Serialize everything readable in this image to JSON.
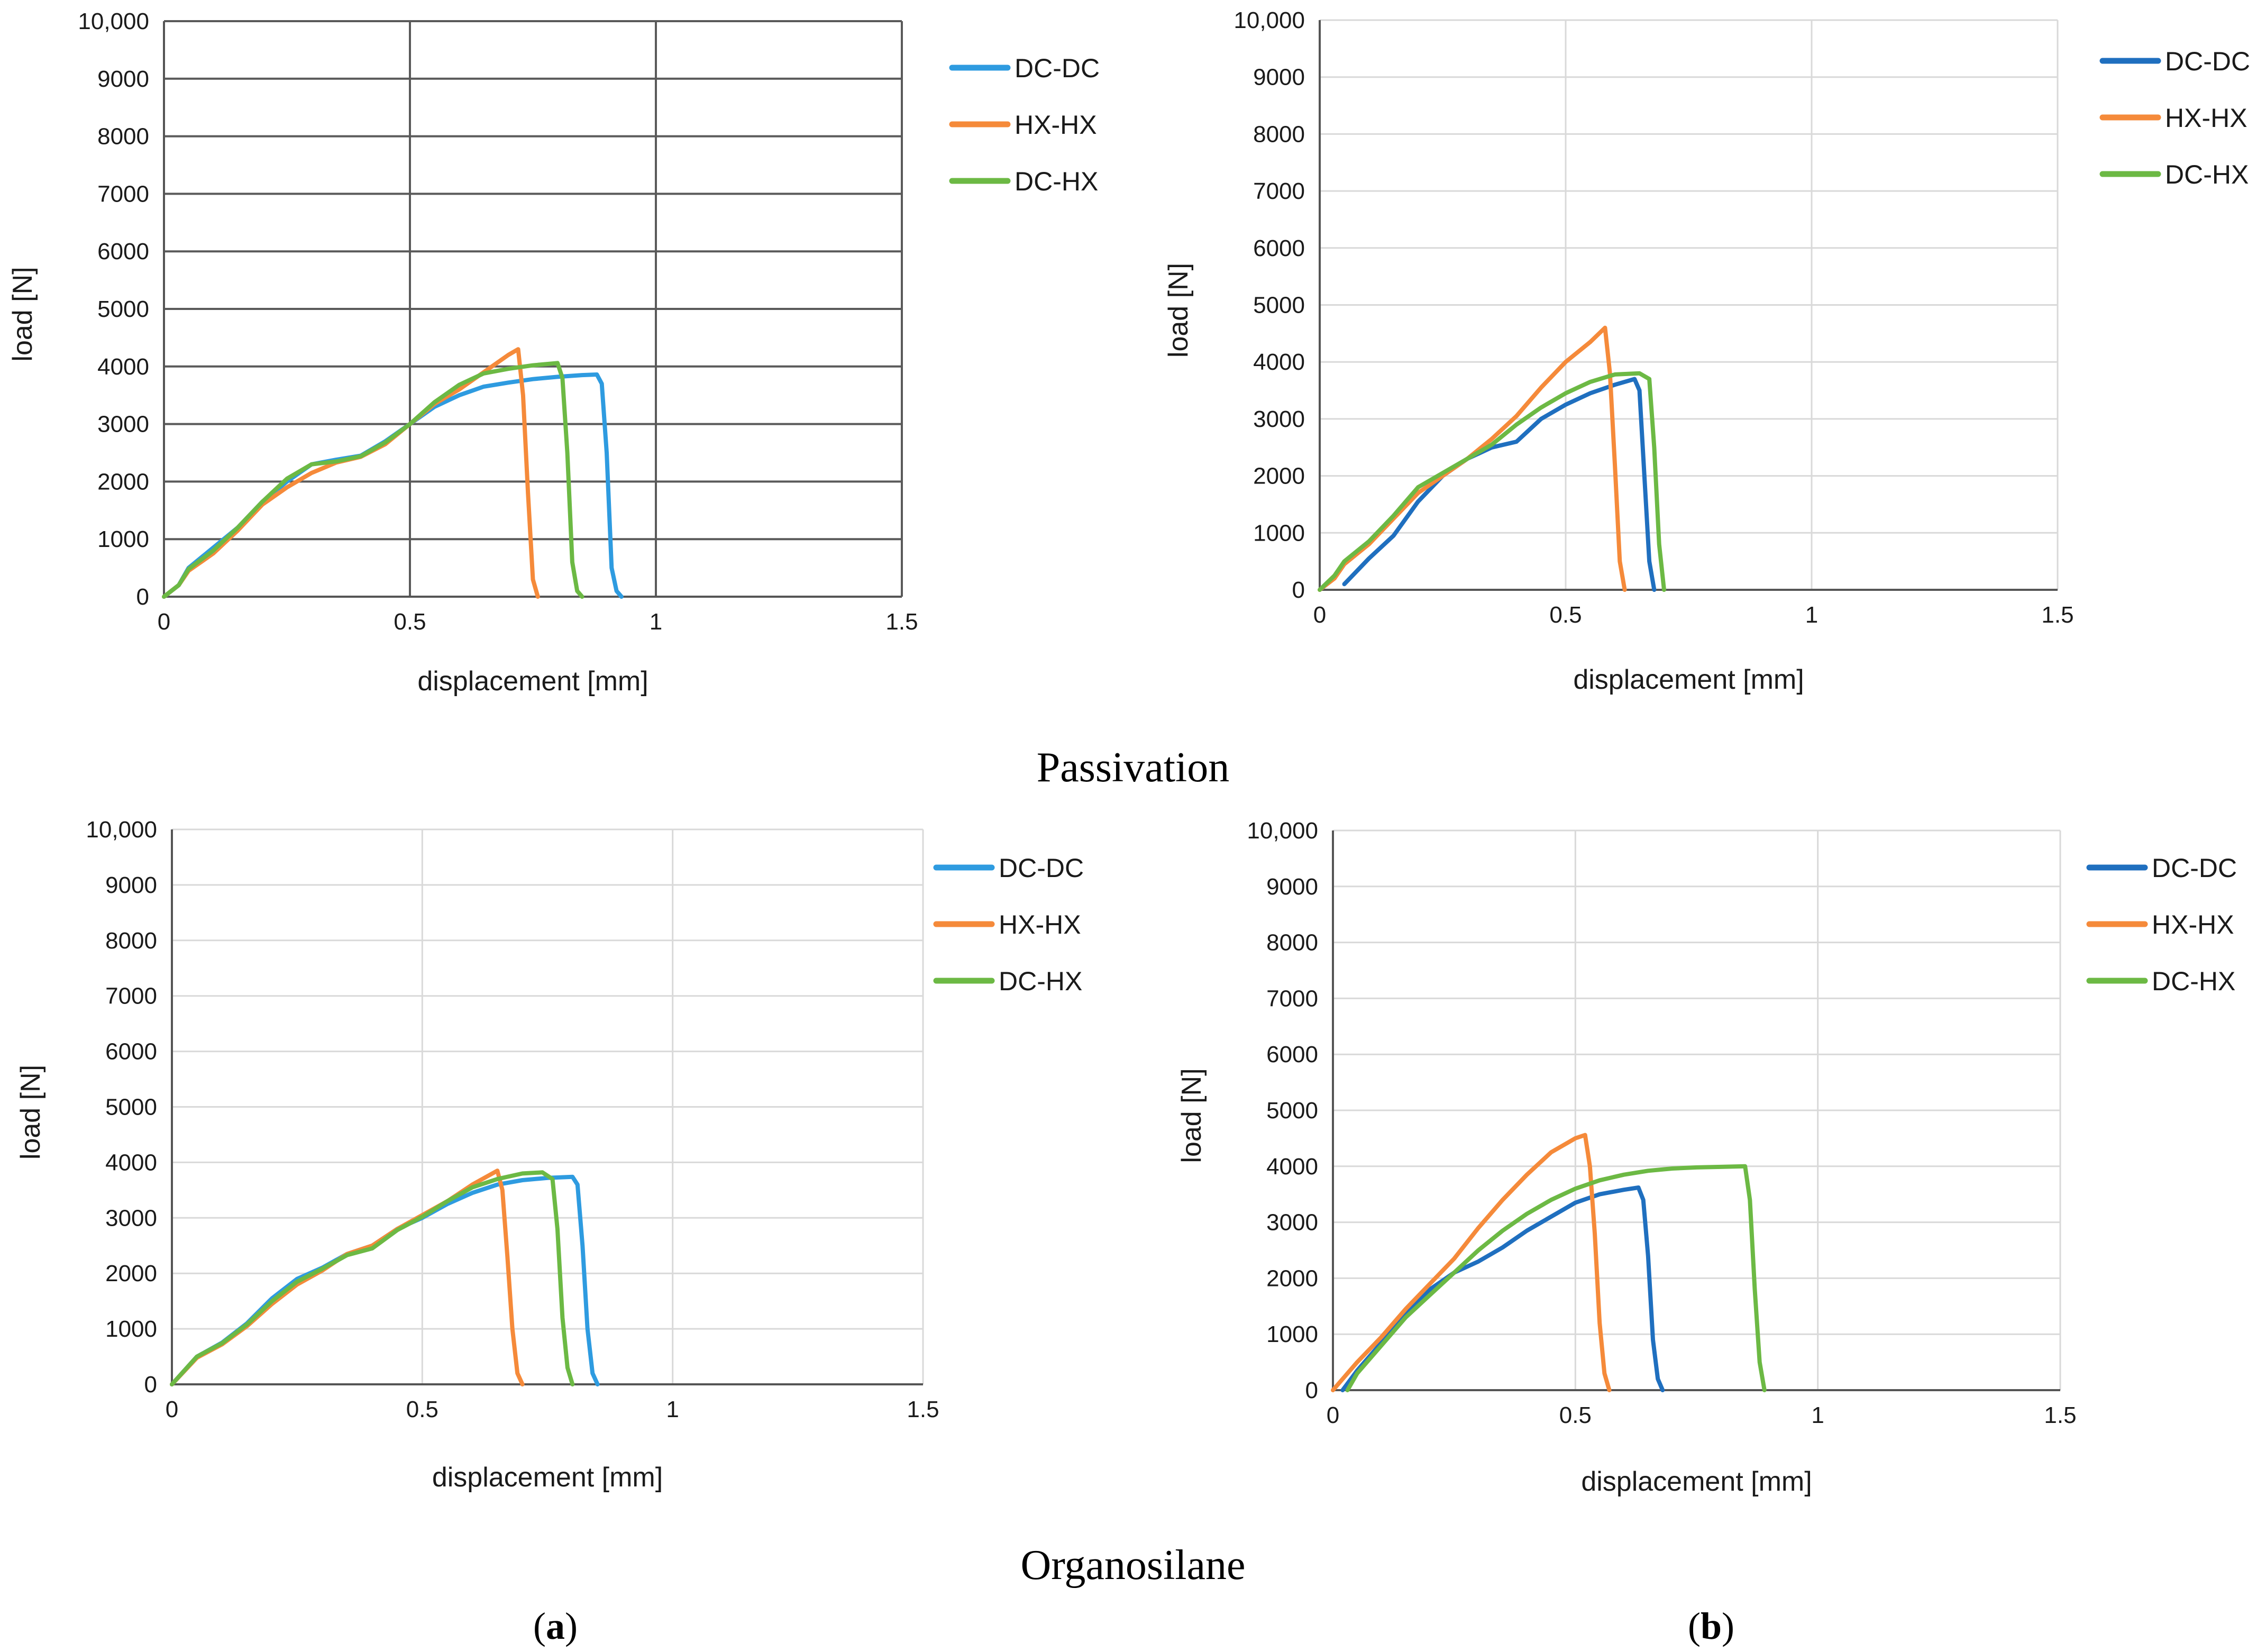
{
  "captions": {
    "row1": "Passivation",
    "row2": "Organosilane"
  },
  "panel_labels": {
    "a": {
      "open": "(",
      "letter": "a",
      "close": ")"
    },
    "b": {
      "open": "(",
      "letter": "b",
      "close": ")"
    }
  },
  "chart_data": [
    {
      "type": "line",
      "panel": "Passivation (a)",
      "xlabel": "displacement [mm]",
      "ylabel": "load [N]",
      "xlim": [
        0,
        1.5
      ],
      "ylim": [
        0,
        10000
      ],
      "xticks": [
        "0",
        "0.5",
        "1",
        "1.5"
      ],
      "yticks": [
        "0",
        "1000",
        "2000",
        "3000",
        "4000",
        "5000",
        "6000",
        "7000",
        "8000",
        "9000",
        "10,000"
      ],
      "grid": "major",
      "grid_color": "#5a5a5a",
      "legend_position": "right",
      "series": [
        {
          "name": "DC-DC",
          "color": "#2e9be0",
          "x": [
            0,
            0.03,
            0.05,
            0.1,
            0.15,
            0.2,
            0.25,
            0.3,
            0.35,
            0.4,
            0.45,
            0.5,
            0.55,
            0.6,
            0.65,
            0.7,
            0.75,
            0.8,
            0.85,
            0.88,
            0.89,
            0.9,
            0.91,
            0.92,
            0.93
          ],
          "y": [
            0,
            200,
            500,
            850,
            1200,
            1650,
            2000,
            2300,
            2380,
            2450,
            2700,
            3000,
            3300,
            3500,
            3650,
            3720,
            3780,
            3820,
            3850,
            3860,
            3700,
            2500,
            500,
            100,
            0
          ]
        },
        {
          "name": "HX-HX",
          "color": "#f58a3a",
          "x": [
            0,
            0.03,
            0.05,
            0.1,
            0.15,
            0.2,
            0.25,
            0.3,
            0.35,
            0.4,
            0.45,
            0.5,
            0.55,
            0.6,
            0.65,
            0.7,
            0.72,
            0.73,
            0.74,
            0.75,
            0.76
          ],
          "y": [
            0,
            200,
            450,
            750,
            1150,
            1600,
            1900,
            2150,
            2330,
            2430,
            2650,
            3000,
            3350,
            3600,
            3900,
            4200,
            4300,
            3500,
            1800,
            300,
            0
          ]
        },
        {
          "name": "DC-HX",
          "color": "#6cb944",
          "x": [
            0,
            0.03,
            0.05,
            0.1,
            0.15,
            0.2,
            0.25,
            0.3,
            0.35,
            0.4,
            0.45,
            0.5,
            0.55,
            0.6,
            0.65,
            0.7,
            0.75,
            0.8,
            0.81,
            0.82,
            0.83,
            0.84,
            0.85
          ],
          "y": [
            0,
            200,
            480,
            800,
            1200,
            1650,
            2050,
            2300,
            2350,
            2440,
            2680,
            3000,
            3380,
            3680,
            3880,
            3960,
            4020,
            4060,
            3800,
            2500,
            600,
            100,
            0
          ]
        }
      ]
    },
    {
      "type": "line",
      "panel": "Passivation (b)",
      "xlabel": "displacement [mm]",
      "ylabel": "load [N]",
      "xlim": [
        0,
        1.5
      ],
      "ylim": [
        0,
        10000
      ],
      "xticks": [
        "0",
        "0.5",
        "1",
        "1.5"
      ],
      "yticks": [
        "0",
        "1000",
        "2000",
        "3000",
        "4000",
        "5000",
        "6000",
        "7000",
        "8000",
        "9000",
        "10,000"
      ],
      "grid": "major",
      "grid_color": "#d9d9d9",
      "legend_position": "right",
      "series": [
        {
          "name": "DC-DC",
          "color": "#1f6fbf",
          "x": [
            0.05,
            0.1,
            0.15,
            0.2,
            0.25,
            0.3,
            0.35,
            0.4,
            0.45,
            0.5,
            0.55,
            0.6,
            0.64,
            0.65,
            0.66,
            0.67,
            0.68
          ],
          "y": [
            100,
            550,
            950,
            1550,
            2000,
            2300,
            2500,
            2600,
            3000,
            3250,
            3450,
            3600,
            3700,
            3500,
            2000,
            500,
            0
          ]
        },
        {
          "name": "HX-HX",
          "color": "#f58a3a",
          "x": [
            0,
            0.03,
            0.05,
            0.1,
            0.15,
            0.2,
            0.25,
            0.3,
            0.35,
            0.4,
            0.45,
            0.5,
            0.55,
            0.58,
            0.59,
            0.6,
            0.61,
            0.62
          ],
          "y": [
            0,
            200,
            450,
            800,
            1250,
            1700,
            2000,
            2300,
            2650,
            3050,
            3550,
            4000,
            4350,
            4600,
            3800,
            2200,
            500,
            0
          ]
        },
        {
          "name": "DC-HX",
          "color": "#6cb944",
          "x": [
            0,
            0.03,
            0.05,
            0.1,
            0.15,
            0.2,
            0.25,
            0.3,
            0.35,
            0.4,
            0.45,
            0.5,
            0.55,
            0.6,
            0.65,
            0.67,
            0.68,
            0.69,
            0.7
          ],
          "y": [
            0,
            250,
            500,
            850,
            1300,
            1800,
            2050,
            2300,
            2550,
            2900,
            3200,
            3450,
            3650,
            3780,
            3800,
            3700,
            2500,
            800,
            0
          ]
        }
      ]
    },
    {
      "type": "line",
      "panel": "Organosilane (a)",
      "xlabel": "displacement [mm]",
      "ylabel": "load [N]",
      "xlim": [
        0,
        1.5
      ],
      "ylim": [
        0,
        10000
      ],
      "xticks": [
        "0",
        "0.5",
        "1",
        "1.5"
      ],
      "yticks": [
        "0",
        "1000",
        "2000",
        "3000",
        "4000",
        "5000",
        "6000",
        "7000",
        "8000",
        "9000",
        "10,000"
      ],
      "grid": "major",
      "grid_color": "#d9d9d9",
      "legend_position": "right",
      "series": [
        {
          "name": "DC-DC",
          "color": "#2e9be0",
          "x": [
            0,
            0.05,
            0.1,
            0.15,
            0.2,
            0.25,
            0.3,
            0.35,
            0.4,
            0.45,
            0.5,
            0.55,
            0.6,
            0.65,
            0.7,
            0.75,
            0.8,
            0.81,
            0.82,
            0.83,
            0.84,
            0.85
          ],
          "y": [
            0,
            500,
            750,
            1100,
            1550,
            1900,
            2100,
            2350,
            2500,
            2800,
            3000,
            3250,
            3450,
            3600,
            3680,
            3720,
            3740,
            3600,
            2500,
            1000,
            200,
            0
          ]
        },
        {
          "name": "HX-HX",
          "color": "#f58a3a",
          "x": [
            0,
            0.05,
            0.1,
            0.15,
            0.2,
            0.25,
            0.3,
            0.35,
            0.4,
            0.45,
            0.5,
            0.55,
            0.6,
            0.65,
            0.66,
            0.67,
            0.68,
            0.69,
            0.7
          ],
          "y": [
            0,
            480,
            720,
            1050,
            1450,
            1800,
            2050,
            2350,
            2500,
            2800,
            3050,
            3300,
            3600,
            3850,
            3500,
            2300,
            1000,
            200,
            0
          ]
        },
        {
          "name": "DC-HX",
          "color": "#6cb944",
          "x": [
            0,
            0.05,
            0.1,
            0.15,
            0.2,
            0.25,
            0.3,
            0.35,
            0.4,
            0.45,
            0.5,
            0.55,
            0.6,
            0.65,
            0.7,
            0.74,
            0.76,
            0.77,
            0.78,
            0.79,
            0.8
          ],
          "y": [
            0,
            500,
            740,
            1080,
            1500,
            1850,
            2080,
            2330,
            2450,
            2780,
            3020,
            3300,
            3550,
            3700,
            3800,
            3820,
            3700,
            2800,
            1200,
            300,
            0
          ]
        }
      ]
    },
    {
      "type": "line",
      "panel": "Organosilane (b)",
      "xlabel": "displacement [mm]",
      "ylabel": "load [N]",
      "xlim": [
        0,
        1.5
      ],
      "ylim": [
        0,
        10000
      ],
      "xticks": [
        "0",
        "0.5",
        "1",
        "1.5"
      ],
      "yticks": [
        "0",
        "1000",
        "2000",
        "3000",
        "4000",
        "5000",
        "6000",
        "7000",
        "8000",
        "9000",
        "10,000"
      ],
      "grid": "major",
      "grid_color": "#d9d9d9",
      "legend_position": "right",
      "series": [
        {
          "name": "DC-DC",
          "color": "#1f6fbf",
          "x": [
            0.02,
            0.05,
            0.1,
            0.15,
            0.2,
            0.25,
            0.3,
            0.35,
            0.4,
            0.45,
            0.5,
            0.55,
            0.6,
            0.63,
            0.64,
            0.65,
            0.66,
            0.67,
            0.68
          ],
          "y": [
            0,
            350,
            850,
            1350,
            1800,
            2100,
            2300,
            2550,
            2850,
            3100,
            3350,
            3500,
            3580,
            3620,
            3400,
            2400,
            900,
            200,
            0
          ]
        },
        {
          "name": "HX-HX",
          "color": "#f58a3a",
          "x": [
            0,
            0.03,
            0.05,
            0.1,
            0.15,
            0.2,
            0.25,
            0.3,
            0.35,
            0.4,
            0.45,
            0.5,
            0.52,
            0.53,
            0.54,
            0.55,
            0.56,
            0.57
          ],
          "y": [
            0,
            300,
            500,
            950,
            1450,
            1900,
            2350,
            2900,
            3400,
            3850,
            4250,
            4500,
            4560,
            4000,
            2800,
            1200,
            300,
            0
          ]
        },
        {
          "name": "DC-HX",
          "color": "#6cb944",
          "x": [
            0.03,
            0.05,
            0.1,
            0.15,
            0.2,
            0.25,
            0.3,
            0.35,
            0.4,
            0.45,
            0.5,
            0.55,
            0.6,
            0.65,
            0.7,
            0.75,
            0.8,
            0.85,
            0.86,
            0.87,
            0.88,
            0.89
          ],
          "y": [
            0,
            300,
            800,
            1300,
            1700,
            2100,
            2500,
            2850,
            3150,
            3400,
            3600,
            3750,
            3850,
            3920,
            3960,
            3980,
            3990,
            4000,
            3400,
            1800,
            500,
            0
          ]
        }
      ]
    }
  ]
}
